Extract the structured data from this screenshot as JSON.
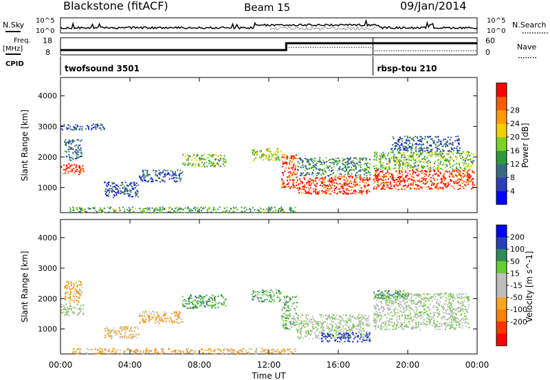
{
  "header": {
    "title": "Blackstone (fitACF)",
    "beam": "Beam 15",
    "date": "09/Jan/2014"
  },
  "top_panels": {
    "nsky_label": "N.Sky",
    "nsearch_label": "N.Search",
    "noise_ticks": [
      "10^5",
      "10^0"
    ],
    "freq_label": "Freq.",
    "freq_unit": "[MHz]",
    "freq_ticks": [
      "18",
      "8"
    ],
    "nave_label": "Nave",
    "nave_ticks": [
      "60",
      "0"
    ],
    "cpid_label": "CPID",
    "cpid_segments": [
      {
        "name": "twofsound 3501",
        "start_hour": 0
      },
      {
        "name": "rbsp-tou 210",
        "start_hour": 18
      }
    ]
  },
  "colors": {
    "power": [
      "#0000ff",
      "#2b3fb5",
      "#3a6b80",
      "#2e9a3c",
      "#7ed321",
      "#f5d000",
      "#ff9d00",
      "#ff5a00",
      "#ff0000"
    ],
    "velocity": [
      "#0000ff",
      "#2b3fb5",
      "#2e8b57",
      "#66cc33",
      "#bebebe",
      "#bebebe",
      "#f5a623",
      "#ff7f00",
      "#ff3300",
      "#ff0000"
    ]
  },
  "chart_data": [
    {
      "type": "heatmap",
      "panel": "power",
      "ylabel": "Slant Range [km]",
      "xlabel": "Time UT",
      "xlim_hours": [
        0,
        24
      ],
      "ylim_km": [
        180,
        4600
      ],
      "x_ticks": [
        "00:00",
        "04:00",
        "08:00",
        "12:00",
        "16:00",
        "20:00",
        "00:00"
      ],
      "y_ticks": [
        1000,
        2000,
        3000,
        4000
      ],
      "colorbar": {
        "label": "Power [dB]",
        "ticks": [
          "4",
          "8",
          "12",
          "16",
          "20",
          "24",
          "28"
        ],
        "range": [
          0,
          30
        ]
      },
      "scatter_bands": [
        {
          "t_start": 0.0,
          "t_end": 1.3,
          "range_km": [
            1450,
            1800
          ],
          "value": 27
        },
        {
          "t_start": 0.2,
          "t_end": 1.2,
          "range_km": [
            1900,
            2600
          ],
          "value": 8
        },
        {
          "t_start": 0.0,
          "t_end": 2.5,
          "range_km": [
            2900,
            3100
          ],
          "value": 6
        },
        {
          "t_start": 2.5,
          "t_end": 4.5,
          "range_km": [
            700,
            1200
          ],
          "value": 6
        },
        {
          "t_start": 4.5,
          "t_end": 7.0,
          "range_km": [
            1200,
            1600
          ],
          "value": 7
        },
        {
          "t_start": 7.0,
          "t_end": 9.5,
          "range_km": [
            1700,
            2100
          ],
          "value": 14
        },
        {
          "t_start": 11.0,
          "t_end": 12.7,
          "range_km": [
            1900,
            2300
          ],
          "value": 16
        },
        {
          "t_start": 12.7,
          "t_end": 13.6,
          "range_km": [
            1000,
            2100
          ],
          "value": 26
        },
        {
          "t_start": 13.6,
          "t_end": 17.8,
          "range_km": [
            800,
            1400
          ],
          "value": 27
        },
        {
          "t_start": 13.6,
          "t_end": 17.8,
          "range_km": [
            1400,
            2000
          ],
          "value": 10
        },
        {
          "t_start": 18.0,
          "t_end": 23.8,
          "range_km": [
            950,
            1600
          ],
          "value": 27
        },
        {
          "t_start": 18.0,
          "t_end": 23.8,
          "range_km": [
            1600,
            2200
          ],
          "value": 14
        },
        {
          "t_start": 19.0,
          "t_end": 23.0,
          "range_km": [
            2200,
            2700
          ],
          "value": 7
        },
        {
          "t_start": 0.5,
          "t_end": 13.5,
          "range_km": [
            200,
            380
          ],
          "value": 12
        }
      ]
    },
    {
      "type": "heatmap",
      "panel": "velocity",
      "ylabel": "Slant Range [km]",
      "xlabel": "Time UT",
      "xlim_hours": [
        0,
        24
      ],
      "ylim_km": [
        180,
        4600
      ],
      "x_ticks": [
        "00:00",
        "04:00",
        "08:00",
        "12:00",
        "16:00",
        "20:00",
        "00:00"
      ],
      "y_ticks": [
        1000,
        2000,
        3000,
        4000
      ],
      "colorbar": {
        "label": "Velocity [m s^-1]",
        "ticks": [
          "200",
          "100",
          "50",
          "15",
          "-15",
          "-50",
          "-100",
          "-200"
        ],
        "range": [
          -250,
          250
        ]
      },
      "scatter_bands": [
        {
          "t_start": 0.0,
          "t_end": 1.3,
          "range_km": [
            1450,
            1850
          ],
          "value": 0
        },
        {
          "t_start": 0.2,
          "t_end": 1.2,
          "range_km": [
            1900,
            2600
          ],
          "value": -80
        },
        {
          "t_start": 2.5,
          "t_end": 4.5,
          "range_km": [
            700,
            1100
          ],
          "value": -60
        },
        {
          "t_start": 4.5,
          "t_end": 7.0,
          "range_km": [
            1200,
            1600
          ],
          "value": -70
        },
        {
          "t_start": 7.0,
          "t_end": 9.5,
          "range_km": [
            1700,
            2150
          ],
          "value": 60
        },
        {
          "t_start": 11.0,
          "t_end": 12.7,
          "range_km": [
            1900,
            2300
          ],
          "value": 40
        },
        {
          "t_start": 12.7,
          "t_end": 13.6,
          "range_km": [
            1000,
            2100
          ],
          "value": 30
        },
        {
          "t_start": 13.6,
          "t_end": 17.8,
          "range_km": [
            700,
            1500
          ],
          "value": 0
        },
        {
          "t_start": 15.0,
          "t_end": 17.8,
          "range_km": [
            600,
            900
          ],
          "value": 160
        },
        {
          "t_start": 18.0,
          "t_end": 23.5,
          "range_km": [
            1000,
            2200
          ],
          "value": 0
        },
        {
          "t_start": 18.0,
          "t_end": 20.0,
          "range_km": [
            2000,
            2300
          ],
          "value": 60
        },
        {
          "t_start": 0.5,
          "t_end": 13.5,
          "range_km": [
            200,
            380
          ],
          "value": -70
        }
      ]
    }
  ]
}
